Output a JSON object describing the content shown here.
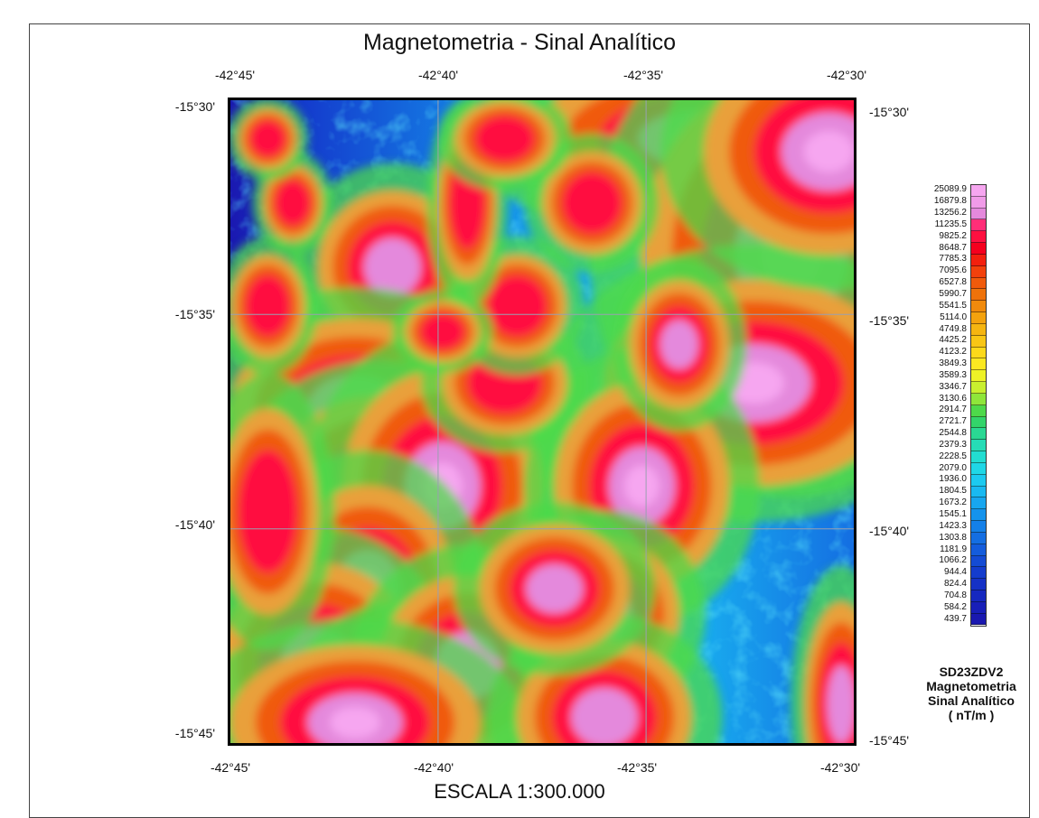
{
  "title": "Magnetometria - Sinal Analítico",
  "longitudes": [
    "-42°45'",
    "-42°40'",
    "-42°35'",
    "-42°30'"
  ],
  "latitudes": [
    "-15°30'",
    "-15°35'",
    "-15°40'",
    "-15°45'"
  ],
  "legend": {
    "values": [
      "25089.9",
      "16879.8",
      "13256.2",
      "11235.5",
      "9825.2",
      "8648.7",
      "7785.3",
      "7095.6",
      "6527.8",
      "5990.7",
      "5541.5",
      "5114.0",
      "4749.8",
      "4425.2",
      "4123.2",
      "3849.3",
      "3589.3",
      "3346.7",
      "3130.6",
      "2914.7",
      "2721.7",
      "2544.8",
      "2379.3",
      "2228.5",
      "2079.0",
      "1936.0",
      "1804.5",
      "1673.2",
      "1545.1",
      "1423.3",
      "1303.8",
      "1181.9",
      "1066.2",
      "944.4",
      "824.4",
      "704.8",
      "584.2",
      "439.7"
    ],
    "colors": [
      "#f6a6f0",
      "#f09be8",
      "#e489dc",
      "#ff2e78",
      "#ff1040",
      "#f5001e",
      "#f3200e",
      "#f2410c",
      "#f05a0b",
      "#ee720b",
      "#f08a0c",
      "#f3a20e",
      "#f5b511",
      "#f8c615",
      "#fcd91a",
      "#fbe821",
      "#eef227",
      "#c9ef2f",
      "#8fe63a",
      "#4ed94a",
      "#33d46a",
      "#2ad893",
      "#26dcb6",
      "#22ddd1",
      "#1fd7e6",
      "#1ccaf0",
      "#19b9f1",
      "#17a6ef",
      "#1593ec",
      "#1480e8",
      "#146ee2",
      "#145cdc",
      "#144bd4",
      "#143ccd",
      "#1531c6",
      "#1628bf",
      "#181fb8",
      "#1a18b0"
    ],
    "caption": [
      "SD23ZDV2",
      "Magnetometria",
      "Sinal Analítico",
      "( nT/m )"
    ]
  },
  "scale_text": "ESCALA 1:300.000",
  "colors": {
    "background": "#1c44c8",
    "grid": "#9aa0b0",
    "frame": "#000000"
  },
  "anomalies": [
    {
      "lon": -42.685,
      "lat": -15.565,
      "intensity": 0.9,
      "rx": 0.03,
      "ry": 0.03
    },
    {
      "lon": -42.672,
      "lat": -15.633,
      "intensity": 1.0,
      "rx": 0.04,
      "ry": 0.035
    },
    {
      "lon": -42.7,
      "lat": -15.62,
      "intensity": 0.85,
      "rx": 0.05,
      "ry": 0.035
    },
    {
      "lon": -42.69,
      "lat": -15.655,
      "intensity": 1.0,
      "rx": 0.045,
      "ry": 0.04
    },
    {
      "lon": -42.665,
      "lat": -15.65,
      "intensity": 1.0,
      "rx": 0.04,
      "ry": 0.045
    },
    {
      "lon": -42.695,
      "lat": -15.69,
      "intensity": 1.0,
      "rx": 0.035,
      "ry": 0.04
    },
    {
      "lon": -42.715,
      "lat": -15.72,
      "intensity": 1.0,
      "rx": 0.04,
      "ry": 0.04
    },
    {
      "lon": -42.68,
      "lat": -15.735,
      "intensity": 0.9,
      "rx": 0.035,
      "ry": 0.03
    },
    {
      "lon": -42.655,
      "lat": -15.72,
      "intensity": 0.8,
      "rx": 0.035,
      "ry": 0.035
    },
    {
      "lon": -42.7,
      "lat": -15.742,
      "intensity": 0.95,
      "rx": 0.05,
      "ry": 0.03
    },
    {
      "lon": -42.735,
      "lat": -15.66,
      "intensity": 0.7,
      "rx": 0.02,
      "ry": 0.04
    },
    {
      "lon": -42.56,
      "lat": -15.515,
      "intensity": 1.0,
      "rx": 0.07,
      "ry": 0.03
    },
    {
      "lon": -42.525,
      "lat": -15.56,
      "intensity": 1.0,
      "rx": 0.06,
      "ry": 0.07
    },
    {
      "lon": -42.54,
      "lat": -15.61,
      "intensity": 1.0,
      "rx": 0.06,
      "ry": 0.04
    },
    {
      "lon": -42.51,
      "lat": -15.52,
      "intensity": 1.0,
      "rx": 0.05,
      "ry": 0.04
    },
    {
      "lon": -42.585,
      "lat": -15.65,
      "intensity": 1.0,
      "rx": 0.035,
      "ry": 0.04
    },
    {
      "lon": -42.6,
      "lat": -15.7,
      "intensity": 0.85,
      "rx": 0.03,
      "ry": 0.03
    },
    {
      "lon": -42.6,
      "lat": -15.74,
      "intensity": 0.9,
      "rx": 0.035,
      "ry": 0.03
    },
    {
      "lon": -42.62,
      "lat": -15.69,
      "intensity": 0.8,
      "rx": 0.03,
      "ry": 0.025
    },
    {
      "lon": -42.64,
      "lat": -15.61,
      "intensity": 0.75,
      "rx": 0.025,
      "ry": 0.02
    },
    {
      "lon": -42.605,
      "lat": -15.54,
      "intensity": 0.7,
      "rx": 0.02,
      "ry": 0.02
    },
    {
      "lon": -42.635,
      "lat": -15.58,
      "intensity": 0.65,
      "rx": 0.02,
      "ry": 0.02
    },
    {
      "lon": -42.57,
      "lat": -15.595,
      "intensity": 0.8,
      "rx": 0.02,
      "ry": 0.025
    },
    {
      "lon": -42.505,
      "lat": -15.735,
      "intensity": 0.9,
      "rx": 0.015,
      "ry": 0.04
    },
    {
      "lon": -42.655,
      "lat": -15.54,
      "intensity": 0.7,
      "rx": 0.012,
      "ry": 0.03
    },
    {
      "lon": -42.725,
      "lat": -15.54,
      "intensity": 0.7,
      "rx": 0.012,
      "ry": 0.015
    },
    {
      "lon": -42.735,
      "lat": -15.58,
      "intensity": 0.75,
      "rx": 0.015,
      "ry": 0.02
    },
    {
      "lon": -42.735,
      "lat": -15.515,
      "intensity": 0.6,
      "rx": 0.012,
      "ry": 0.012
    },
    {
      "lon": -42.64,
      "lat": -15.515,
      "intensity": 0.7,
      "rx": 0.02,
      "ry": 0.015
    },
    {
      "lon": -42.665,
      "lat": -15.59,
      "intensity": 0.65,
      "rx": 0.015,
      "ry": 0.012
    }
  ]
}
